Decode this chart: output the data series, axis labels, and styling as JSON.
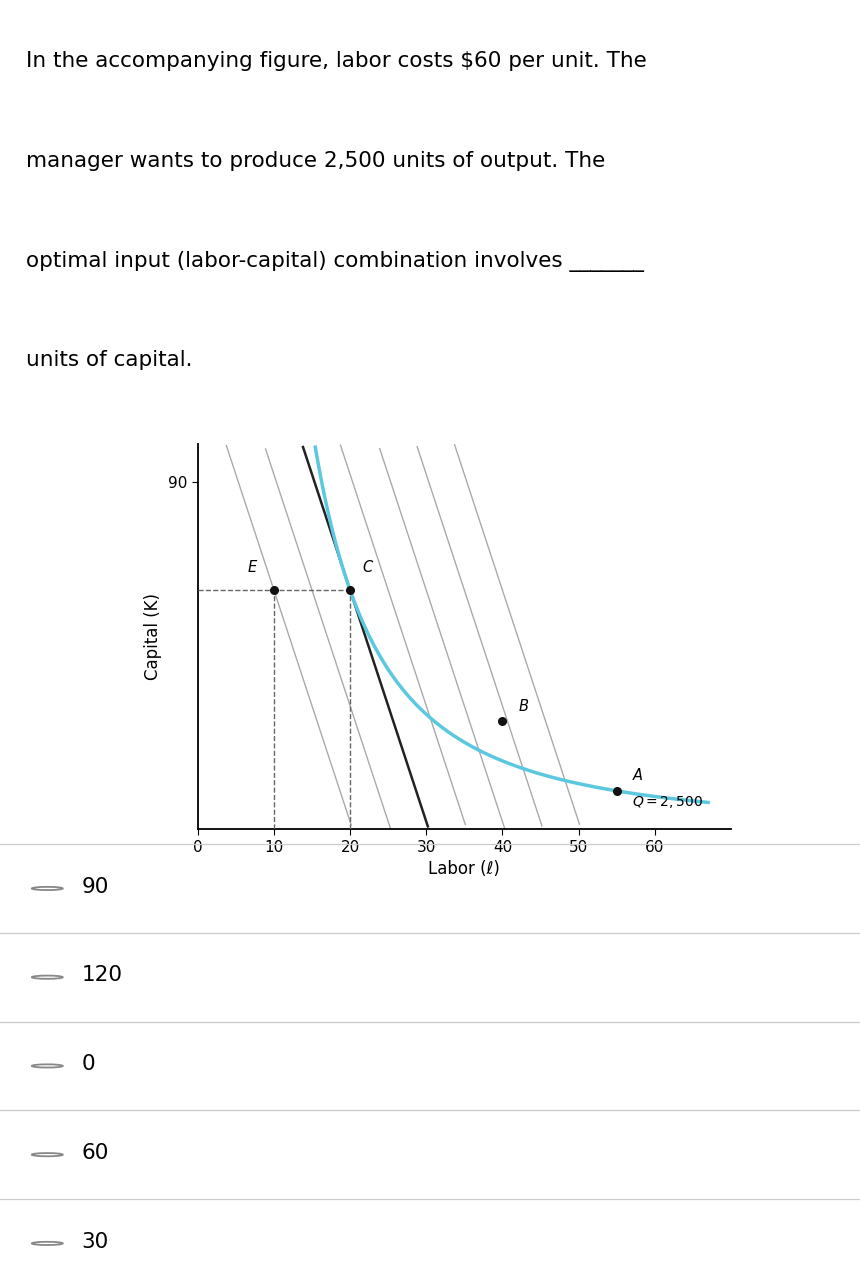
{
  "xlabel": "Labor (ℓ)",
  "ylabel": "Capital (K)",
  "xlim": [
    0,
    70
  ],
  "ylim": [
    0,
    100
  ],
  "xticks": [
    0,
    10,
    20,
    30,
    40,
    50,
    60
  ],
  "ytick_val": 90,
  "isoquant_color": "#5bc8e0",
  "isocost_dark_color": "#222222",
  "isocost_gray_color": "#aaaaaa",
  "dashed_color": "#666666",
  "point_color": "#111111",
  "point_E": [
    10,
    62
  ],
  "point_C": [
    20,
    62
  ],
  "point_B": [
    40,
    28
  ],
  "point_A": [
    55,
    10
  ],
  "dashed_y": 62,
  "background_color": "#ffffff",
  "options": [
    "90",
    "120",
    "0",
    "60",
    "30"
  ],
  "line_color": "#cccccc",
  "text_lines": [
    "In the accompanying figure, labor costs $60 per unit. The",
    "manager wants to produce 2,500 units of output. The",
    "optimal input (labor-capital) combination involves _______",
    "units of capital."
  ],
  "text_fontsize": 15.5,
  "isocost_slope": 6.0,
  "isocost_x_intercept_optimal": 35,
  "parallel_shifts": [
    -10,
    -5,
    5,
    10,
    15,
    20
  ]
}
